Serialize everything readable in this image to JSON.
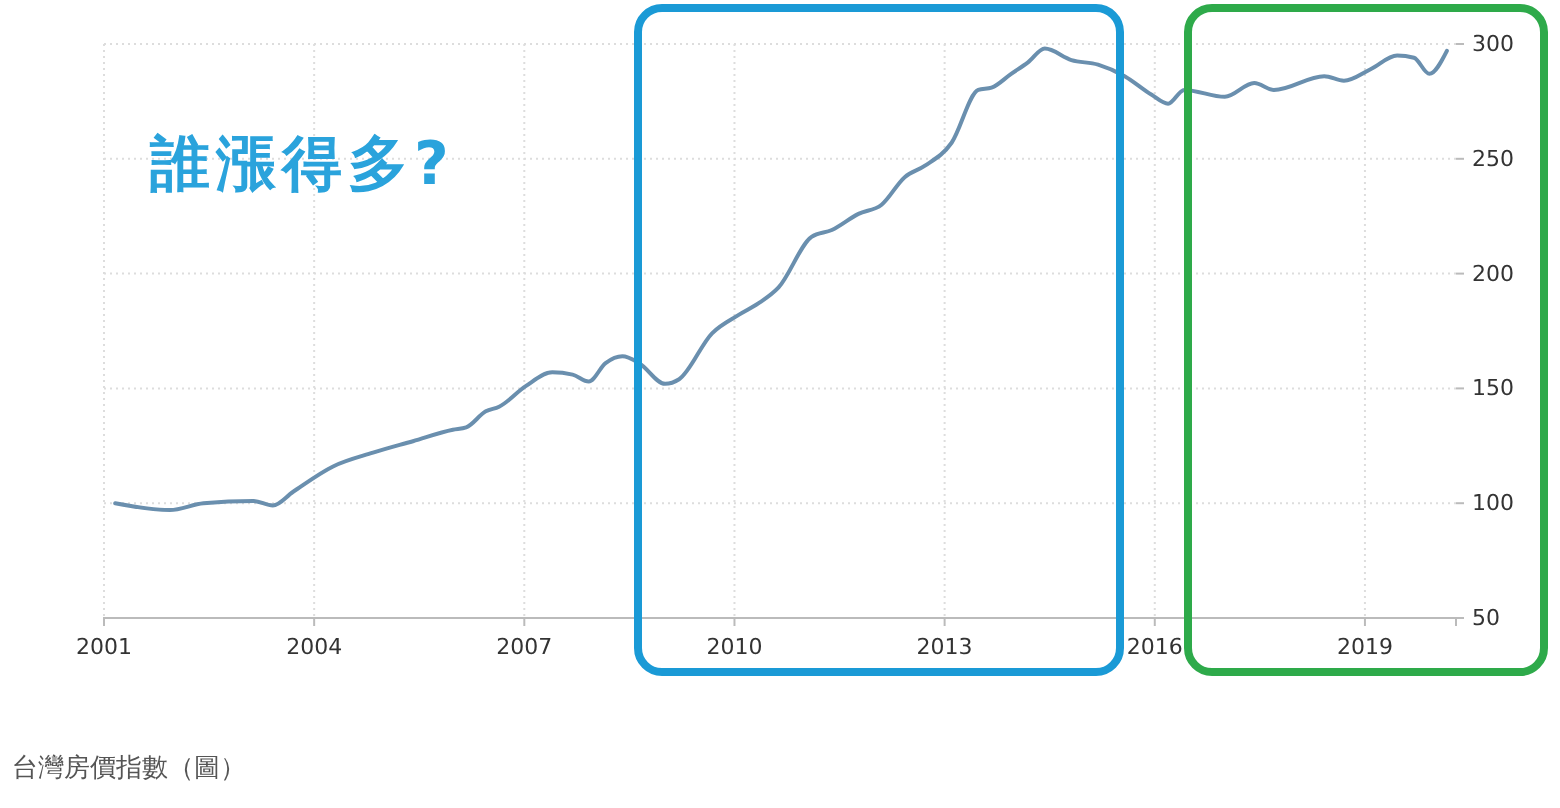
{
  "chart_data": {
    "type": "line",
    "title": "誰漲得多?",
    "x": [
      2001.16,
      2001.94,
      2002.42,
      2003.13,
      2003.41,
      2003.7,
      2004.27,
      2004.84,
      2005.41,
      2005.98,
      2006.17,
      2006.45,
      2006.64,
      2007.02,
      2007.4,
      2007.69,
      2007.92,
      2008.16,
      2008.4,
      2008.64,
      2009.01,
      2009.21,
      2009.68,
      2010.06,
      2010.34,
      2010.63,
      2011.1,
      2011.39,
      2011.77,
      2012.1,
      2012.43,
      2012.72,
      2013.1,
      2013.48,
      2013.67,
      2013.95,
      2014.19,
      2014.43,
      2014.81,
      2015.19,
      2015.57,
      2015.95,
      2016.19,
      2016.42,
      2017.0,
      2017.42,
      2017.7,
      2018.42,
      2018.7,
      2019.08,
      2019.46,
      2019.7,
      2019.92,
      2020.17
    ],
    "series": [
      {
        "color": "#6a8fae",
        "values": [
          100,
          97,
          100,
          101,
          99,
          105,
          116,
          122,
          127,
          132,
          133,
          140,
          142,
          151,
          157,
          156,
          153,
          161,
          164,
          161,
          152,
          154,
          174,
          182,
          187,
          194,
          216,
          219,
          226,
          230,
          242,
          247,
          257,
          280,
          281,
          287,
          292,
          298,
          293,
          291,
          286,
          278,
          274,
          280,
          277,
          283,
          280,
          286,
          284,
          289,
          295,
          294,
          287,
          297
        ]
      }
    ],
    "xlim": [
      2001,
      2020.3
    ],
    "xticks": [
      2001,
      2004,
      2007,
      2010,
      2013,
      2016,
      2019
    ],
    "ylim": [
      50,
      300
    ],
    "yticks": [
      50,
      100,
      150,
      200,
      250,
      300
    ],
    "grid": true,
    "marker": "none",
    "line_style": "solid",
    "annotations": [
      "台灣房價指數（圖）"
    ]
  }
}
